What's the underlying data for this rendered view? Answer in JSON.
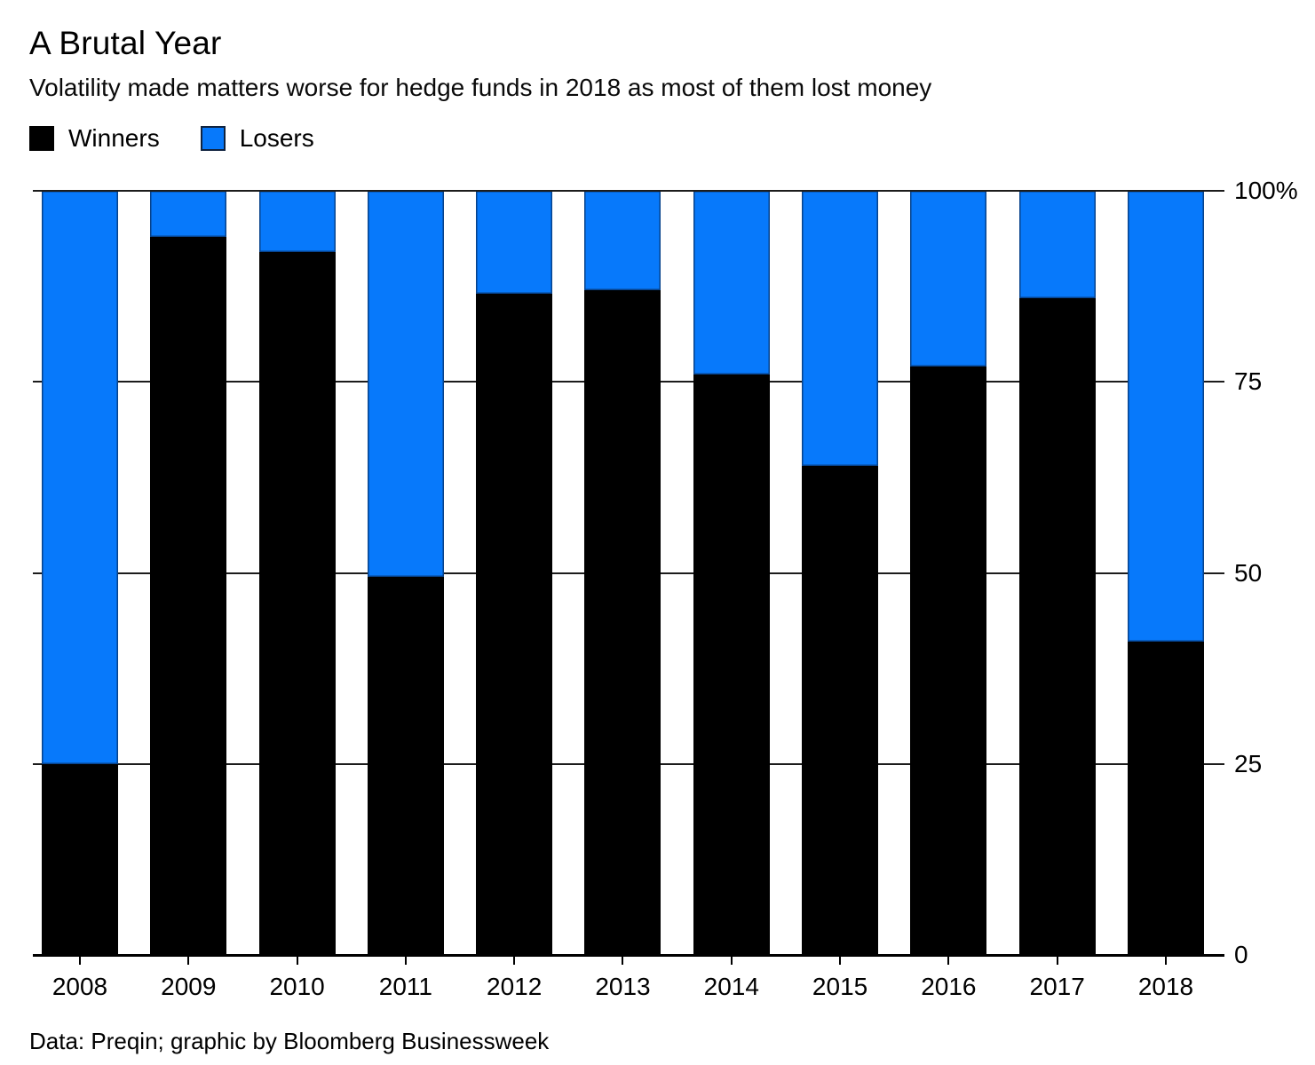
{
  "header": {
    "title": "A Brutal Year",
    "subtitle": "Volatility made matters worse for hedge funds in 2018 as most of them lost money"
  },
  "legend": {
    "items": [
      {
        "label": "Winners",
        "color": "#000000"
      },
      {
        "label": "Losers",
        "color": "#0779fb"
      }
    ]
  },
  "chart_data": {
    "type": "bar",
    "stacked": true,
    "title": "A Brutal Year",
    "subtitle": "Volatility made matters worse for hedge funds in 2018 as most of them lost money",
    "categories": [
      "2008",
      "2009",
      "2010",
      "2011",
      "2012",
      "2013",
      "2014",
      "2015",
      "2016",
      "2017",
      "2018"
    ],
    "series": [
      {
        "name": "Winners",
        "color": "#000000",
        "values": [
          25,
          94,
          92,
          49.5,
          86.5,
          87,
          76,
          64,
          77,
          86,
          41
        ]
      },
      {
        "name": "Losers",
        "color": "#0779fb",
        "values": [
          75,
          6,
          8,
          50.5,
          13.5,
          13,
          24,
          36,
          23,
          14,
          59
        ]
      }
    ],
    "unit": "%",
    "ylim": [
      0,
      100
    ],
    "y_ticks": [
      "100%",
      "75",
      "50",
      "25",
      "0"
    ],
    "grid": true,
    "legend_position": "top-left"
  },
  "footer": {
    "caption": "Data: Preqin; graphic by Bloomberg Businessweek"
  },
  "colors": {
    "winners": "#000000",
    "losers": "#0779fb",
    "gridline": "#1c1c1c",
    "background": "#ffffff",
    "text": "#000000"
  }
}
